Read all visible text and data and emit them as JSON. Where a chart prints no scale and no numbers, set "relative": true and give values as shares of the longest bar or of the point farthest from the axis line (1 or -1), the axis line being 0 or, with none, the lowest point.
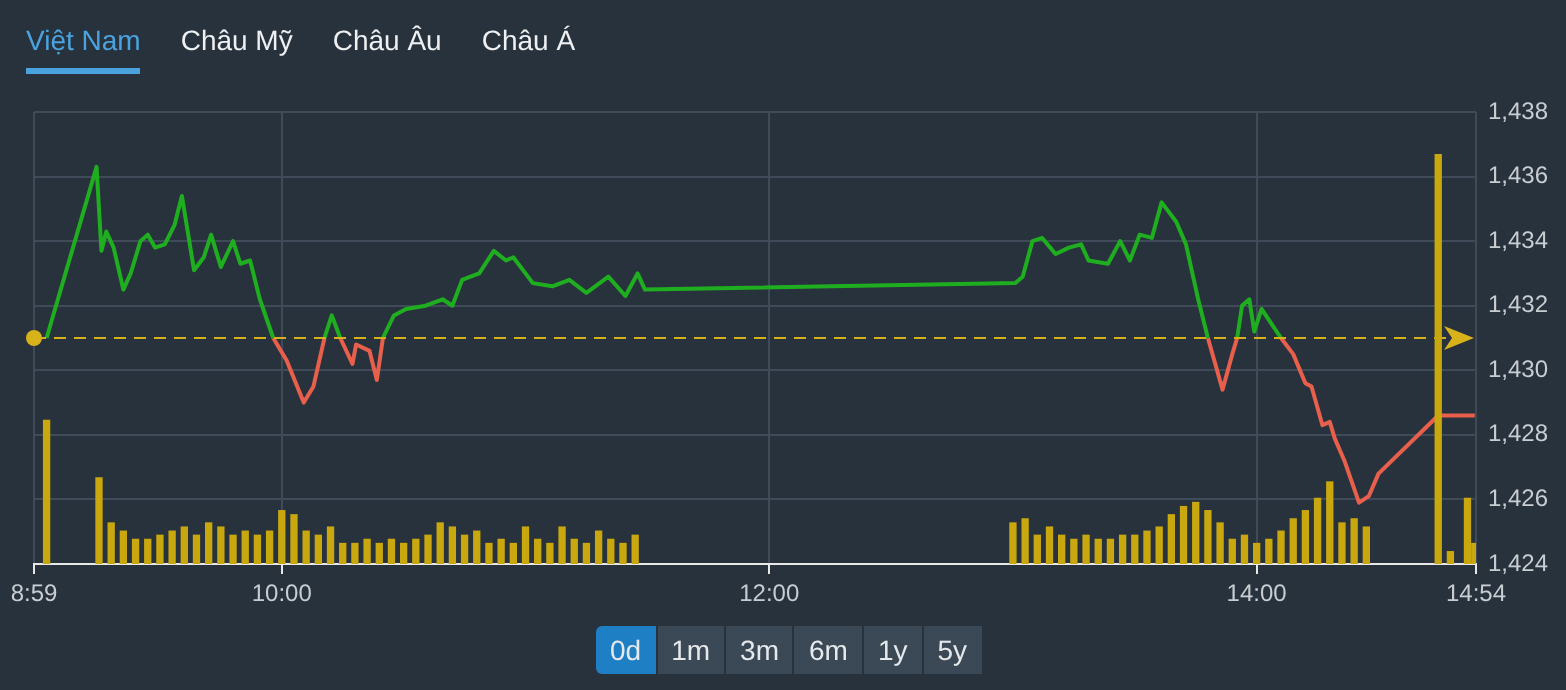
{
  "chart_data": [
    {
      "type": "line",
      "marker": "none",
      "grid": true,
      "line_style": "solid",
      "annotations": [
        "Việt Nam",
        "Châu Mỹ",
        "Châu Âu",
        "Châu Á",
        "0d",
        "1m",
        "3m",
        "6m",
        "1y",
        "5y"
      ],
      "xlim": [
        8.9833,
        14.9
      ],
      "xticks": [
        {
          "value": 8.9833,
          "label": "8:59"
        },
        {
          "value": 10,
          "label": "10:00"
        },
        {
          "value": 12,
          "label": "12:00"
        },
        {
          "value": 14,
          "label": "14:00"
        },
        {
          "value": 14.9,
          "label": "14:54"
        }
      ],
      "ylim": [
        1424,
        1438
      ],
      "yticks": [
        {
          "value": 1424,
          "label": "1,424"
        },
        {
          "value": 1426,
          "label": "1,426"
        },
        {
          "value": 1428,
          "label": "1,428"
        },
        {
          "value": 1430,
          "label": "1,430"
        },
        {
          "value": 1432,
          "label": "1,432"
        },
        {
          "value": 1434,
          "label": "1,434"
        },
        {
          "value": 1436,
          "label": "1,436"
        },
        {
          "value": 1438,
          "label": "1,438"
        }
      ],
      "ref_lines": [
        {
          "axis": "y",
          "value": 1431,
          "color": "#d8b21a",
          "line_style": "dashed"
        }
      ],
      "series": [
        {
          "type": "scatter",
          "marker": "circle",
          "color": "#d8b21a",
          "x": [
            8.9833
          ],
          "values": [
            1431
          ]
        },
        {
          "color": "#1fae1f",
          "x": [
            9.035,
            9.24,
            9.26,
            9.28,
            9.31,
            9.35,
            9.38,
            9.42,
            9.45,
            9.48,
            9.52,
            9.56,
            9.59,
            9.64,
            9.68,
            9.71,
            9.75,
            9.8,
            9.83,
            9.87,
            9.91,
            9.965,
            10.07,
            10.175,
            10.205,
            10.24,
            10.33,
            10.415,
            10.46,
            10.51,
            10.59,
            10.66,
            10.7,
            10.74,
            10.81,
            10.87,
            10.92,
            10.95,
            11.03,
            11.11,
            11.18,
            11.25,
            11.34,
            11.41,
            11.46,
            11.49,
            13.01,
            13.04,
            13.08,
            13.12,
            13.175,
            13.23,
            13.28,
            13.31,
            13.39,
            13.44,
            13.48,
            13.52,
            13.57,
            13.61,
            13.67,
            13.71,
            13.76,
            13.8,
            13.86,
            13.92,
            13.94,
            13.97,
            13.99,
            14.02,
            14.1
          ],
          "values": [
            1431.0,
            1436.3,
            1433.7,
            1434.3,
            1433.8,
            1432.5,
            1433.0,
            1434.0,
            1434.2,
            1433.8,
            1433.9,
            1434.5,
            1435.4,
            1433.1,
            1433.5,
            1434.2,
            1433.2,
            1434.0,
            1433.3,
            1433.4,
            1432.2,
            1431.0,
            null,
            1431.0,
            1431.7,
            1431.0,
            null,
            1431.0,
            1431.7,
            1431.9,
            1432.0,
            1432.2,
            1432.0,
            1432.8,
            1433.0,
            1433.7,
            1433.4,
            1433.5,
            1432.7,
            1432.6,
            1432.8,
            1432.4,
            1432.9,
            1432.3,
            1433.0,
            1432.5,
            1432.7,
            1432.9,
            1434.0,
            1434.1,
            1433.6,
            1433.8,
            1433.9,
            1433.4,
            1433.3,
            1434.0,
            1433.4,
            1434.2,
            1434.1,
            1435.2,
            1434.6,
            1433.9,
            1432.2,
            1431.0,
            null,
            1431.0,
            1432.0,
            1432.2,
            1431.2,
            1431.9,
            1431.0
          ]
        },
        {
          "color": "#e8604c",
          "x": [
            9.965,
            10.02,
            10.09,
            10.13,
            10.175,
            10.2,
            10.24,
            10.29,
            10.305,
            10.36,
            10.39,
            10.415,
            11.0,
            13.8,
            13.86,
            13.9,
            13.92,
            14.0,
            14.1,
            14.15,
            14.2,
            14.225,
            14.27,
            14.3,
            14.32,
            14.36,
            14.42,
            14.46,
            14.5,
            14.745,
            14.895
          ],
          "values": [
            1431.0,
            1430.3,
            1429.0,
            1429.5,
            1431.0,
            null,
            1431.0,
            1430.2,
            1430.8,
            1430.6,
            1429.7,
            1431.0,
            null,
            1431.0,
            1429.4,
            1430.5,
            1431.0,
            null,
            1431.0,
            1430.5,
            1429.6,
            1429.5,
            1428.3,
            1428.4,
            1427.9,
            1427.2,
            1425.9,
            1426.1,
            1426.8,
            1428.6,
            1428.6
          ]
        }
      ]
    },
    {
      "type": "bar",
      "relative": true,
      "tick_labels": false,
      "color": "#c9a80f",
      "xlim": [
        8.9833,
        14.9
      ],
      "x": [
        9.035,
        9.25,
        9.3,
        9.35,
        9.4,
        9.45,
        9.5,
        9.55,
        9.6,
        9.65,
        9.7,
        9.75,
        9.8,
        9.85,
        9.9,
        9.95,
        10.0,
        10.05,
        10.1,
        10.15,
        10.2,
        10.25,
        10.3,
        10.35,
        10.4,
        10.45,
        10.5,
        10.55,
        10.6,
        10.65,
        10.7,
        10.75,
        10.8,
        10.85,
        10.9,
        10.95,
        11.0,
        11.05,
        11.1,
        11.15,
        11.2,
        11.25,
        11.3,
        11.35,
        11.4,
        11.45,
        13.0,
        13.05,
        13.1,
        13.15,
        13.2,
        13.25,
        13.3,
        13.35,
        13.4,
        13.45,
        13.5,
        13.55,
        13.6,
        13.65,
        13.7,
        13.75,
        13.8,
        13.85,
        13.9,
        13.95,
        14.0,
        14.05,
        14.1,
        14.15,
        14.2,
        14.25,
        14.3,
        14.35,
        14.4,
        14.45,
        14.745,
        14.795,
        14.865,
        14.895
      ],
      "values": [
        0.35,
        0.21,
        0.1,
        0.08,
        0.06,
        0.06,
        0.07,
        0.08,
        0.09,
        0.07,
        0.1,
        0.09,
        0.07,
        0.08,
        0.07,
        0.08,
        0.13,
        0.12,
        0.08,
        0.07,
        0.09,
        0.05,
        0.05,
        0.06,
        0.05,
        0.06,
        0.05,
        0.06,
        0.07,
        0.1,
        0.09,
        0.07,
        0.08,
        0.05,
        0.06,
        0.05,
        0.09,
        0.06,
        0.05,
        0.09,
        0.06,
        0.05,
        0.08,
        0.06,
        0.05,
        0.07,
        0.1,
        0.11,
        0.07,
        0.09,
        0.07,
        0.06,
        0.07,
        0.06,
        0.06,
        0.07,
        0.07,
        0.08,
        0.09,
        0.12,
        0.14,
        0.15,
        0.13,
        0.1,
        0.06,
        0.07,
        0.05,
        0.06,
        0.08,
        0.11,
        0.13,
        0.16,
        0.2,
        0.1,
        0.11,
        0.09,
        1,
        0.03,
        0.16,
        0.05
      ]
    }
  ]
}
